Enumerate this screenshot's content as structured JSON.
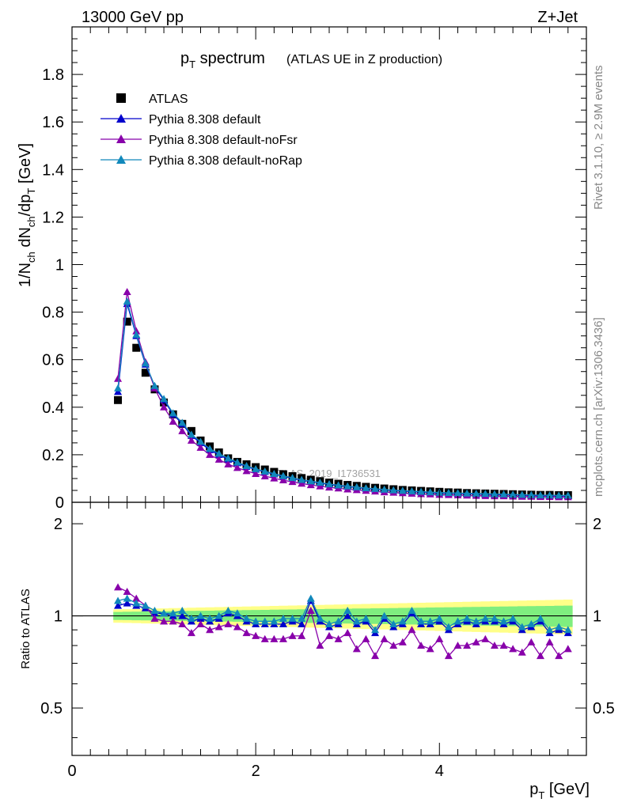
{
  "header": {
    "left_label": "13000 GeV pp",
    "right_label": "Z+Jet",
    "title_main": "p",
    "title_sub": "T",
    "title_rest": " spectrum",
    "title_suffix": "(ATLAS UE in Z production)",
    "side_label_top": "Rivet 3.1.10, ≥ 2.9M events",
    "side_label_bottom": "mcplots.cern.ch [arXiv:1306.3436]",
    "watermark": "ATLAS_2019_I1736531"
  },
  "axes": {
    "ylabel_main": "1/N",
    "ylabel_ch": "ch",
    "ylabel_dn": " dN",
    "ylabel_ch2": "ch",
    "ylabel_dp": "/dp",
    "ylabel_t": "T",
    "ylabel_unit": " [GeV]",
    "ratio_ylabel": "Ratio to ATLAS",
    "xlabel_p": "p",
    "xlabel_t": "T",
    "xlabel_unit": " [GeV]"
  },
  "chart_data": [
    {
      "type": "scatter",
      "panel": "main",
      "xlim": [
        0,
        5.6
      ],
      "ylim": [
        0,
        2.0
      ],
      "yticks": [
        0,
        0.2,
        0.4,
        0.6,
        0.8,
        1,
        1.2,
        1.4,
        1.6,
        1.8
      ],
      "ytick_labels": [
        "0",
        "0.2",
        "0.4",
        "0.6",
        "0.8",
        "1",
        "1.2",
        "1.4",
        "1.6",
        "1.8"
      ],
      "x": [
        0.5,
        0.6,
        0.7,
        0.8,
        0.9,
        1.0,
        1.1,
        1.2,
        1.3,
        1.4,
        1.5,
        1.6,
        1.7,
        1.8,
        1.9,
        2.0,
        2.1,
        2.2,
        2.3,
        2.4,
        2.5,
        2.6,
        2.7,
        2.8,
        2.9,
        3.0,
        3.1,
        3.2,
        3.3,
        3.4,
        3.5,
        3.6,
        3.7,
        3.8,
        3.9,
        4.0,
        4.1,
        4.2,
        4.3,
        4.4,
        4.5,
        4.6,
        4.7,
        4.8,
        4.9,
        5.0,
        5.1,
        5.2,
        5.3,
        5.4
      ],
      "series": [
        {
          "name": "ATLAS",
          "color": "#000000",
          "marker": "square",
          "values": [
            0.43,
            0.76,
            0.65,
            0.545,
            0.475,
            0.42,
            0.37,
            0.33,
            0.3,
            0.26,
            0.235,
            0.21,
            0.185,
            0.17,
            0.16,
            0.148,
            0.138,
            0.128,
            0.118,
            0.11,
            0.102,
            0.095,
            0.089,
            0.083,
            0.078,
            0.073,
            0.069,
            0.065,
            0.061,
            0.058,
            0.055,
            0.052,
            0.05,
            0.048,
            0.046,
            0.044,
            0.042,
            0.041,
            0.039,
            0.038,
            0.037,
            0.036,
            0.035,
            0.034,
            0.033,
            0.032,
            0.031,
            0.031,
            0.03,
            0.03
          ]
        },
        {
          "name": "Pythia 8.308 default",
          "color": "#0000cc",
          "marker": "triangle",
          "values": [
            0.465,
            0.835,
            0.7,
            0.58,
            0.485,
            0.43,
            0.37,
            0.33,
            0.28,
            0.25,
            0.22,
            0.2,
            0.18,
            0.165,
            0.15,
            0.138,
            0.128,
            0.118,
            0.109,
            0.101,
            0.093,
            0.087,
            0.081,
            0.075,
            0.07,
            0.066,
            0.062,
            0.058,
            0.055,
            0.052,
            0.049,
            0.047,
            0.045,
            0.043,
            0.041,
            0.039,
            0.038,
            0.037,
            0.036,
            0.035,
            0.034,
            0.033,
            0.032,
            0.031,
            0.03,
            0.029,
            0.028,
            0.028,
            0.027,
            0.027
          ]
        },
        {
          "name": "Pythia 8.308 default-noFsr",
          "color": "#8800aa",
          "marker": "triangle",
          "values": [
            0.52,
            0.885,
            0.72,
            0.59,
            0.48,
            0.4,
            0.34,
            0.3,
            0.26,
            0.23,
            0.2,
            0.18,
            0.16,
            0.145,
            0.132,
            0.12,
            0.11,
            0.101,
            0.093,
            0.086,
            0.079,
            0.073,
            0.068,
            0.063,
            0.059,
            0.055,
            0.052,
            0.049,
            0.046,
            0.043,
            0.041,
            0.039,
            0.037,
            0.035,
            0.034,
            0.032,
            0.031,
            0.03,
            0.029,
            0.028,
            0.027,
            0.026,
            0.026,
            0.025,
            0.024,
            0.024,
            0.023,
            0.023,
            0.022,
            0.022
          ]
        },
        {
          "name": "Pythia 8.308 default-noRap",
          "color": "#1188bb",
          "marker": "triangle",
          "values": [
            0.48,
            0.845,
            0.705,
            0.585,
            0.49,
            0.435,
            0.375,
            0.335,
            0.285,
            0.255,
            0.225,
            0.205,
            0.185,
            0.168,
            0.153,
            0.14,
            0.13,
            0.12,
            0.111,
            0.103,
            0.095,
            0.089,
            0.083,
            0.077,
            0.072,
            0.068,
            0.064,
            0.06,
            0.057,
            0.054,
            0.051,
            0.049,
            0.047,
            0.045,
            0.043,
            0.041,
            0.04,
            0.039,
            0.038,
            0.037,
            0.036,
            0.035,
            0.034,
            0.033,
            0.032,
            0.031,
            0.03,
            0.03,
            0.029,
            0.029
          ]
        }
      ]
    },
    {
      "type": "line",
      "panel": "ratio",
      "xlim": [
        0,
        5.6
      ],
      "ylim": [
        0.35,
        2.35
      ],
      "yticks": [
        0.5,
        1,
        2
      ],
      "ytick_labels": [
        "0.5",
        "1",
        "2"
      ],
      "xticks": [
        0,
        2,
        4
      ],
      "xtick_labels": [
        "0",
        "2",
        "4"
      ],
      "x": [
        0.5,
        0.6,
        0.7,
        0.8,
        0.9,
        1.0,
        1.1,
        1.2,
        1.3,
        1.4,
        1.5,
        1.6,
        1.7,
        1.8,
        1.9,
        2.0,
        2.1,
        2.2,
        2.3,
        2.4,
        2.5,
        2.6,
        2.7,
        2.8,
        2.9,
        3.0,
        3.1,
        3.2,
        3.3,
        3.4,
        3.5,
        3.6,
        3.7,
        3.8,
        3.9,
        4.0,
        4.1,
        4.2,
        4.3,
        4.4,
        4.5,
        4.6,
        4.7,
        4.8,
        4.9,
        5.0,
        5.1,
        5.2,
        5.3,
        5.4
      ],
      "bands": {
        "inner_color": "#7fee7f",
        "outer_color": "#ffff88",
        "inner_half_width_start": 0.03,
        "inner_half_width_end": 0.08,
        "outer_half_width_start": 0.05,
        "outer_half_width_end": 0.13
      },
      "series": [
        {
          "name": "Pythia 8.308 default",
          "color": "#0000cc",
          "values": [
            1.08,
            1.1,
            1.08,
            1.06,
            1.02,
            1.02,
            1.0,
            1.0,
            0.96,
            0.98,
            0.96,
            0.98,
            1.02,
            1.0,
            0.96,
            0.94,
            0.94,
            0.94,
            0.94,
            0.96,
            0.94,
            1.12,
            0.96,
            0.92,
            0.94,
            1.0,
            0.94,
            0.96,
            0.88,
            0.98,
            0.92,
            0.94,
            1.02,
            0.94,
            0.94,
            0.96,
            0.9,
            0.94,
            0.96,
            0.94,
            0.96,
            0.96,
            0.94,
            0.96,
            0.9,
            0.92,
            0.96,
            0.88,
            0.9,
            0.88
          ]
        },
        {
          "name": "Pythia 8.308 default-noFsr",
          "color": "#8800aa",
          "values": [
            1.24,
            1.2,
            1.14,
            1.08,
            0.98,
            0.96,
            0.96,
            0.94,
            0.88,
            0.94,
            0.9,
            0.92,
            0.94,
            0.92,
            0.88,
            0.86,
            0.84,
            0.84,
            0.84,
            0.86,
            0.86,
            1.04,
            0.8,
            0.86,
            0.84,
            0.88,
            0.78,
            0.84,
            0.74,
            0.84,
            0.8,
            0.82,
            0.9,
            0.8,
            0.78,
            0.84,
            0.74,
            0.8,
            0.8,
            0.82,
            0.84,
            0.8,
            0.8,
            0.78,
            0.76,
            0.82,
            0.74,
            0.82,
            0.74,
            0.78
          ]
        },
        {
          "name": "Pythia 8.308 default-noRap",
          "color": "#1188bb",
          "values": [
            1.12,
            1.14,
            1.1,
            1.08,
            1.04,
            1.02,
            1.02,
            1.04,
            0.98,
            1.0,
            0.98,
            1.0,
            1.04,
            1.02,
            0.98,
            0.96,
            0.96,
            0.96,
            0.98,
            0.98,
            0.98,
            1.14,
            0.98,
            0.94,
            0.96,
            1.04,
            0.96,
            0.98,
            0.9,
            1.0,
            0.94,
            0.96,
            1.04,
            0.96,
            0.96,
            0.98,
            0.92,
            0.96,
            0.98,
            0.96,
            0.98,
            0.98,
            0.96,
            0.98,
            0.92,
            0.94,
            0.98,
            0.9,
            0.92,
            0.9
          ]
        }
      ]
    }
  ]
}
